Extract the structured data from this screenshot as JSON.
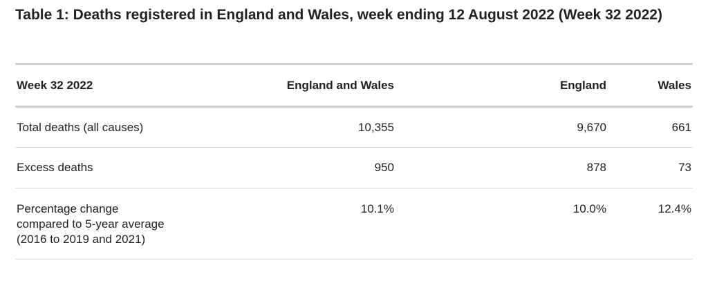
{
  "title": "Table 1: Deaths registered in England and Wales, week ending 12 August 2022 (Week 32 2022)",
  "table": {
    "columns": [
      "Week 32 2022",
      "England and Wales",
      "England",
      "Wales"
    ],
    "rows": [
      [
        "Total deaths (all causes)",
        "10,355",
        "9,670",
        "661"
      ],
      [
        "Excess deaths",
        "950",
        "878",
        "73"
      ],
      [
        "Percentage change compared to 5-year average (2016 to 2019 and 2021)",
        "10.1%",
        "10.0%",
        "12.4%"
      ]
    ]
  }
}
